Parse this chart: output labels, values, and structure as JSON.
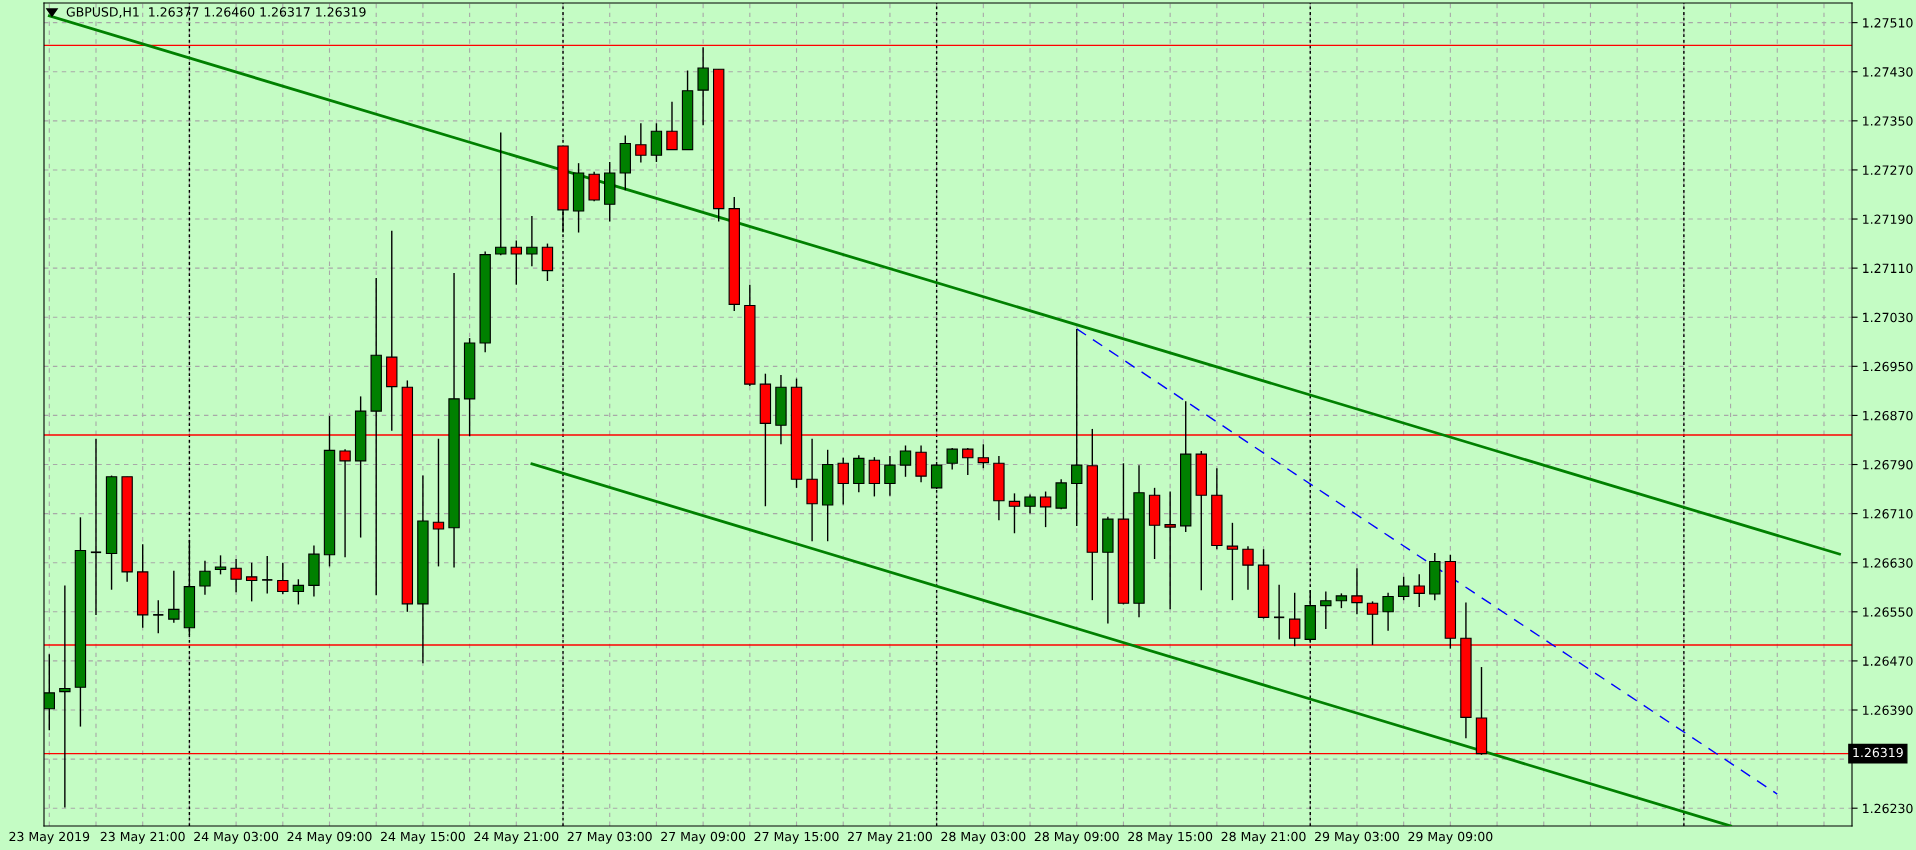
{
  "chart_data": {
    "type": "candlestick",
    "title": "GBPUSD,H1  1.26377 1.26460 1.26317 1.26319",
    "categories": [
      "23 May 2019",
      null,
      null,
      null,
      null,
      null,
      "23 May 21:00",
      null,
      null,
      null,
      null,
      null,
      "24 May 03:00",
      null,
      null,
      null,
      null,
      null,
      "24 May 09:00",
      null,
      null,
      null,
      null,
      null,
      "24 May 15:00",
      null,
      null,
      null,
      null,
      null,
      "24 May 21:00",
      null,
      null,
      null,
      null,
      null,
      "27 May 03:00",
      null,
      null,
      null,
      null,
      null,
      "27 May 09:00",
      null,
      null,
      null,
      null,
      null,
      "27 May 15:00",
      null,
      null,
      null,
      null,
      null,
      "27 May 21:00",
      null,
      null,
      null,
      null,
      null,
      "28 May 03:00",
      null,
      null,
      null,
      null,
      null,
      "28 May 09:00",
      null,
      null,
      null,
      null,
      null,
      "28 May 15:00",
      null,
      null,
      null,
      null,
      null,
      "28 May 21:00",
      null,
      null,
      null,
      null,
      null,
      "29 May 03:00",
      null,
      null,
      null,
      null,
      null,
      "29 May 09:00",
      null,
      null,
      null,
      null,
      null,
      null,
      null,
      null,
      null,
      null,
      null,
      null,
      null,
      null,
      null,
      null,
      null,
      null,
      null,
      null,
      null,
      null,
      null,
      null,
      null
    ],
    "ohlc": [
      [
        1.26392,
        1.26481,
        1.26357,
        1.26418
      ],
      [
        1.2642,
        1.26593,
        1.26231,
        1.26425
      ],
      [
        1.26427,
        1.26704,
        1.26363,
        1.2665
      ],
      [
        1.26647,
        1.26832,
        1.26545,
        1.26647
      ],
      [
        1.26645,
        1.26772,
        1.26586,
        1.2677
      ],
      [
        1.2677,
        1.2677,
        1.26599,
        1.26615
      ],
      [
        1.26615,
        1.2666,
        1.26524,
        1.26545
      ],
      [
        1.26545,
        1.26569,
        1.26515,
        1.26545
      ],
      [
        1.26538,
        1.26617,
        1.26532,
        1.26554
      ],
      [
        1.26524,
        1.26667,
        1.26512,
        1.26591
      ],
      [
        1.26592,
        1.26633,
        1.26578,
        1.26616
      ],
      [
        1.26619,
        1.26642,
        1.26611,
        1.26623
      ],
      [
        1.26621,
        1.26636,
        1.26582,
        1.26603
      ],
      [
        1.26607,
        1.2663,
        1.26567,
        1.26601
      ],
      [
        1.26602,
        1.26641,
        1.2658,
        1.26602
      ],
      [
        1.26601,
        1.2663,
        1.26579,
        1.26583
      ],
      [
        1.26583,
        1.26603,
        1.26562,
        1.26593
      ],
      [
        1.26593,
        1.26658,
        1.26575,
        1.26644
      ],
      [
        1.26643,
        1.26869,
        1.26624,
        1.26813
      ],
      [
        1.26812,
        1.26815,
        1.26639,
        1.26796
      ],
      [
        1.26796,
        1.26901,
        1.26671,
        1.26877
      ],
      [
        1.26877,
        1.27094,
        1.26577,
        1.26968
      ],
      [
        1.26965,
        1.27171,
        1.26845,
        1.26917
      ],
      [
        1.26916,
        1.26927,
        1.2655,
        1.26563
      ],
      [
        1.26563,
        1.26772,
        1.26466,
        1.26698
      ],
      [
        1.26696,
        1.26832,
        1.26624,
        1.26685
      ],
      [
        1.26687,
        1.27102,
        1.26622,
        1.26897
      ],
      [
        1.26897,
        1.26996,
        1.26836,
        1.26988
      ],
      [
        1.26988,
        1.27137,
        1.26973,
        1.27132
      ],
      [
        1.27133,
        1.27331,
        1.27131,
        1.27144
      ],
      [
        1.27144,
        1.27155,
        1.27083,
        1.27133
      ],
      [
        1.27133,
        1.27195,
        1.27113,
        1.27144
      ],
      [
        1.27144,
        1.2715,
        1.27089,
        1.27106
      ],
      [
        1.27309,
        1.27309,
        1.27168,
        1.27205
      ],
      [
        1.27203,
        1.27281,
        1.27168,
        1.27265
      ],
      [
        1.27263,
        1.27267,
        1.27219,
        1.27221
      ],
      [
        1.27214,
        1.27283,
        1.27186,
        1.27265
      ],
      [
        1.27265,
        1.27326,
        1.27237,
        1.27313
      ],
      [
        1.27311,
        1.27346,
        1.27282,
        1.27294
      ],
      [
        1.27294,
        1.27346,
        1.27283,
        1.27333
      ],
      [
        1.27333,
        1.27381,
        1.27303,
        1.27303
      ],
      [
        1.27303,
        1.27432,
        1.27303,
        1.27399
      ],
      [
        1.274,
        1.2747,
        1.27343,
        1.27436
      ],
      [
        1.27434,
        1.27434,
        1.27186,
        1.27207
      ],
      [
        1.27207,
        1.27226,
        1.2704,
        1.27051
      ],
      [
        1.27049,
        1.27083,
        1.26918,
        1.26921
      ],
      [
        1.26921,
        1.26938,
        1.26722,
        1.26857
      ],
      [
        1.26854,
        1.26936,
        1.26823,
        1.26916
      ],
      [
        1.26916,
        1.2693,
        1.26752,
        1.26766
      ],
      [
        1.26766,
        1.26832,
        1.26665,
        1.26726
      ],
      [
        1.26724,
        1.26814,
        1.26665,
        1.2679
      ],
      [
        1.26792,
        1.26801,
        1.26725,
        1.26759
      ],
      [
        1.26759,
        1.26805,
        1.26745,
        1.268
      ],
      [
        1.26797,
        1.26802,
        1.26738,
        1.26759
      ],
      [
        1.26759,
        1.26804,
        1.26739,
        1.26789
      ],
      [
        1.26789,
        1.26821,
        1.2677,
        1.26812
      ],
      [
        1.2681,
        1.26821,
        1.26761,
        1.26771
      ],
      [
        1.26752,
        1.2679,
        1.2675,
        1.26789
      ],
      [
        1.26792,
        1.26817,
        1.26782,
        1.26815
      ],
      [
        1.26815,
        1.26817,
        1.26773,
        1.26801
      ],
      [
        1.26801,
        1.26823,
        1.26784,
        1.26793
      ],
      [
        1.26792,
        1.26804,
        1.26699,
        1.26731
      ],
      [
        1.2673,
        1.26743,
        1.26678,
        1.26722
      ],
      [
        1.26722,
        1.26741,
        1.2671,
        1.26737
      ],
      [
        1.26737,
        1.26746,
        1.26688,
        1.26721
      ],
      [
        1.26719,
        1.26766,
        1.26717,
        1.2676
      ],
      [
        1.26759,
        1.27011,
        1.2669,
        1.26789
      ],
      [
        1.26788,
        1.26848,
        1.26569,
        1.26647
      ],
      [
        1.26647,
        1.26705,
        1.26531,
        1.26701
      ],
      [
        1.26701,
        1.26792,
        1.26562,
        1.26564
      ],
      [
        1.26564,
        1.26789,
        1.26541,
        1.26744
      ],
      [
        1.2674,
        1.26752,
        1.26636,
        1.26691
      ],
      [
        1.26692,
        1.26746,
        1.26554,
        1.26688
      ],
      [
        1.2669,
        1.26893,
        1.2668,
        1.26807
      ],
      [
        1.26807,
        1.26812,
        1.26585,
        1.2674
      ],
      [
        1.2674,
        1.26784,
        1.26652,
        1.26658
      ],
      [
        1.26657,
        1.26695,
        1.26569,
        1.26652
      ],
      [
        1.26652,
        1.26657,
        1.26586,
        1.26626
      ],
      [
        1.26626,
        1.26652,
        1.26539,
        1.26541
      ],
      [
        1.26541,
        1.26594,
        1.26505,
        1.26541
      ],
      [
        1.26538,
        1.26581,
        1.26494,
        1.26507
      ],
      [
        1.26505,
        1.26585,
        1.26502,
        1.2656
      ],
      [
        1.2656,
        1.26583,
        1.26522,
        1.26568
      ],
      [
        1.26568,
        1.2658,
        1.26556,
        1.26576
      ],
      [
        1.26576,
        1.26621,
        1.26546,
        1.26565
      ],
      [
        1.26564,
        1.26567,
        1.26496,
        1.26546
      ],
      [
        1.2655,
        1.26581,
        1.26519,
        1.26575
      ],
      [
        1.26575,
        1.26607,
        1.26569,
        1.26592
      ],
      [
        1.26592,
        1.26611,
        1.26558,
        1.2658
      ],
      [
        1.26579,
        1.26646,
        1.26569,
        1.26632
      ],
      [
        1.26632,
        1.26643,
        1.2649,
        1.26507
      ],
      [
        1.26507,
        1.26565,
        1.26344,
        1.26378
      ],
      [
        1.26377,
        1.2646,
        1.26317,
        1.26319
      ],
      null,
      null,
      null,
      null,
      null,
      null,
      null,
      null,
      null,
      null,
      null,
      null,
      null,
      null,
      null,
      null,
      null,
      null,
      null,
      null,
      null,
      null,
      null
    ],
    "colors": [
      "#008000",
      "#008000",
      "#008000",
      "#000000",
      "#008000",
      "#ff0000",
      "#ff0000",
      "#000000",
      "#008000",
      "#008000",
      "#008000",
      "#008000",
      "#ff0000",
      "#ff0000",
      "#000000",
      "#ff0000",
      "#008000",
      "#008000",
      "#008000",
      "#ff0000",
      "#008000",
      "#008000",
      "#ff0000",
      "#ff0000",
      "#008000",
      "#ff0000",
      "#008000",
      "#008000",
      "#008000",
      "#008000",
      "#ff0000",
      "#008000",
      "#ff0000",
      "#ff0000",
      "#008000",
      "#ff0000",
      "#008000",
      "#008000",
      "#ff0000",
      "#008000",
      "#ff0000",
      "#008000",
      "#008000",
      "#ff0000",
      "#ff0000",
      "#ff0000",
      "#ff0000",
      "#008000",
      "#ff0000",
      "#ff0000",
      "#008000",
      "#ff0000",
      "#008000",
      "#ff0000",
      "#008000",
      "#008000",
      "#ff0000",
      "#008000",
      "#008000",
      "#ff0000",
      "#ff0000",
      "#ff0000",
      "#ff0000",
      "#008000",
      "#ff0000",
      "#008000",
      "#008000",
      "#ff0000",
      "#008000",
      "#ff0000",
      "#008000",
      "#ff0000",
      "#ff0000",
      "#008000",
      "#ff0000",
      "#ff0000",
      "#ff0000",
      "#ff0000",
      "#ff0000",
      "#000000",
      "#ff0000",
      "#008000",
      "#008000",
      "#008000",
      "#ff0000",
      "#ff0000",
      "#008000",
      "#008000",
      "#ff0000",
      "#008000",
      "#ff0000",
      "#ff0000",
      "#ff0000",
      null,
      null,
      null,
      null,
      null,
      null,
      null,
      null,
      null,
      null,
      null,
      null,
      null,
      null,
      null,
      null,
      null,
      null,
      null,
      null,
      null,
      null,
      null
    ],
    "series": [
      {
        "type": "line",
        "color": "#008000",
        "line_style": "solid",
        "values": [
          1.27521,
          null,
          null,
          null,
          null,
          null,
          null,
          null,
          null,
          null,
          null,
          null,
          null,
          null,
          null,
          null,
          null,
          null,
          null,
          null,
          null,
          null,
          null,
          null,
          null,
          null,
          null,
          null,
          null,
          null,
          null,
          null,
          null,
          null,
          null,
          null,
          null,
          null,
          null,
          null,
          null,
          null,
          null,
          null,
          null,
          null,
          null,
          null,
          null,
          null,
          null,
          null,
          null,
          null,
          null,
          null,
          null,
          null,
          null,
          null,
          null,
          null,
          null,
          null,
          null,
          null,
          null,
          null,
          null,
          null,
          null,
          null,
          null,
          null,
          null,
          null,
          null,
          null,
          null,
          null,
          null,
          null,
          null,
          null,
          null,
          null,
          null,
          null,
          null,
          null,
          null,
          null,
          null,
          null,
          null,
          null,
          null,
          null,
          null,
          null,
          null,
          null,
          null,
          null,
          null,
          null,
          null,
          null,
          null,
          null,
          null,
          null,
          null,
          null,
          null,
          1.26644
        ]
      },
      {
        "type": "line",
        "color": "#008000",
        "line_style": "solid",
        "values": [
          null,
          null,
          null,
          null,
          null,
          null,
          null,
          null,
          null,
          null,
          null,
          null,
          null,
          null,
          null,
          null,
          null,
          null,
          null,
          null,
          null,
          null,
          null,
          null,
          null,
          null,
          null,
          null,
          null,
          null,
          null,
          1.26791,
          null,
          null,
          null,
          null,
          null,
          null,
          null,
          null,
          null,
          null,
          null,
          null,
          null,
          null,
          null,
          null,
          null,
          null,
          null,
          null,
          null,
          null,
          null,
          null,
          null,
          null,
          null,
          null,
          null,
          null,
          null,
          null,
          null,
          null,
          null,
          null,
          null,
          null,
          null,
          null,
          null,
          null,
          null,
          null,
          null,
          null,
          null,
          null,
          null,
          null,
          null,
          null,
          null,
          null,
          null,
          null,
          null,
          null,
          null,
          null,
          null,
          null,
          null,
          null,
          null,
          null,
          null,
          null,
          null,
          null,
          null,
          null,
          null,
          null,
          null,
          null,
          1.26201,
          null,
          null,
          null,
          null,
          null,
          null,
          null
        ]
      },
      {
        "type": "line",
        "color": "#0000ff",
        "line_style": "dashed",
        "values": [
          null,
          null,
          null,
          null,
          null,
          null,
          null,
          null,
          null,
          null,
          null,
          null,
          null,
          null,
          null,
          null,
          null,
          null,
          null,
          null,
          null,
          null,
          null,
          null,
          null,
          null,
          null,
          null,
          null,
          null,
          null,
          null,
          null,
          null,
          null,
          null,
          null,
          null,
          null,
          null,
          null,
          null,
          null,
          null,
          null,
          null,
          null,
          null,
          null,
          null,
          null,
          null,
          null,
          null,
          null,
          null,
          null,
          null,
          null,
          null,
          null,
          null,
          null,
          null,
          null,
          null,
          1.27011,
          null,
          null,
          null,
          null,
          null,
          null,
          null,
          null,
          null,
          null,
          null,
          null,
          null,
          null,
          null,
          null,
          null,
          null,
          null,
          null,
          null,
          null,
          null,
          null,
          null,
          null,
          null,
          null,
          null,
          null,
          null,
          null,
          null,
          null,
          null,
          null,
          null,
          null,
          null,
          null,
          null,
          null,
          null,
          null,
          1.26253,
          null,
          null,
          null,
          null
        ]
      }
    ],
    "ylim": [
      1.26201,
      1.27542
    ],
    "yticks": [
      {
        "value": 1.2623,
        "label": "1.26230"
      },
      {
        "value": 1.2631,
        "label": null
      },
      {
        "value": 1.2639,
        "label": "1.26390"
      },
      {
        "value": 1.2647,
        "label": "1.26470"
      },
      {
        "value": 1.2655,
        "label": "1.26550"
      },
      {
        "value": 1.2663,
        "label": "1.26630"
      },
      {
        "value": 1.2671,
        "label": "1.26710"
      },
      {
        "value": 1.2679,
        "label": "1.26790"
      },
      {
        "value": 1.2687,
        "label": "1.26870"
      },
      {
        "value": 1.2695,
        "label": "1.26950"
      },
      {
        "value": 1.2703,
        "label": "1.27030"
      },
      {
        "value": 1.2711,
        "label": "1.27110"
      },
      {
        "value": 1.2719,
        "label": "1.27190"
      },
      {
        "value": 1.2727,
        "label": "1.27270"
      },
      {
        "value": 1.2735,
        "label": "1.27350"
      },
      {
        "value": 1.2743,
        "label": "1.27430"
      },
      {
        "value": 1.2751,
        "label": "1.27510"
      }
    ],
    "ref_lines": [
      {
        "axis": "y",
        "value": 1.27473,
        "color": "#ff0000",
        "line_style": "solid"
      },
      {
        "axis": "y",
        "value": 1.26838,
        "color": "#ff0000",
        "line_style": "solid"
      },
      {
        "axis": "y",
        "value": 1.26496,
        "color": "#ff0000",
        "line_style": "solid"
      },
      {
        "axis": "y",
        "value": 1.26319,
        "color": "#ff0000",
        "line_style": "solid",
        "label": "1.26319"
      }
    ],
    "grid": true,
    "legend": false
  }
}
